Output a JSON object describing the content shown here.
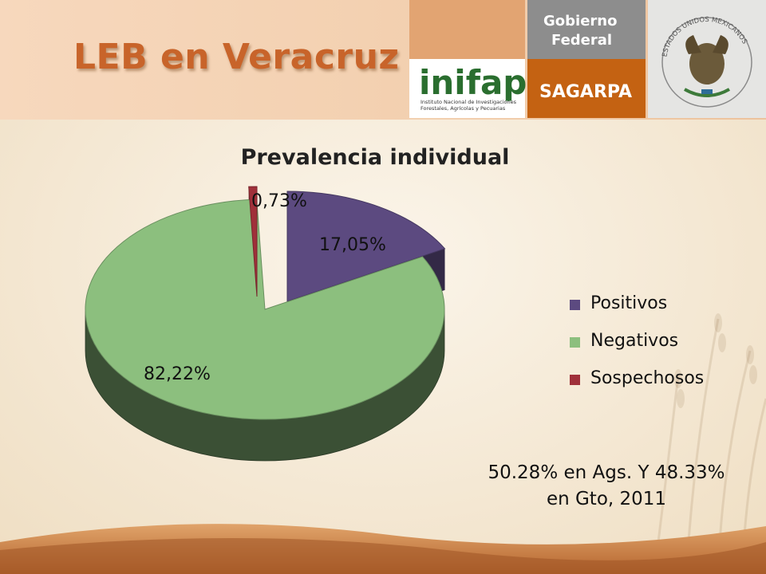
{
  "slide": {
    "title": "LEB en Veracruz"
  },
  "logos": {
    "inifap_name": "inifap",
    "inifap_caption_1": "Instituto Nacional de Investigaciones",
    "inifap_caption_2": "Forestales, Agrícolas y Pecuarias",
    "gobierno_line1": "Gobierno",
    "gobierno_line2": "Federal",
    "sagarpa": "SAGARPA",
    "seal_text": "ESTADOS UNIDOS MEXICANOS"
  },
  "chart_data": {
    "type": "pie",
    "title": "Prevalencia individual",
    "slices": [
      {
        "name": "Positivos",
        "value": 17.05,
        "label": "17,05%",
        "color": "#5c4a80"
      },
      {
        "name": "Negativos",
        "value": 82.22,
        "label": "82,22%",
        "color": "#8cbf7e"
      },
      {
        "name": "Sospechosos",
        "value": 0.73,
        "label": "0,73%",
        "color": "#a0303a"
      }
    ],
    "legend_position": "right",
    "three_d": true,
    "exploded": true
  },
  "note": {
    "line1": "50.28% en Ags. Y 48.33%",
    "line2": "en Gto, 2011"
  }
}
